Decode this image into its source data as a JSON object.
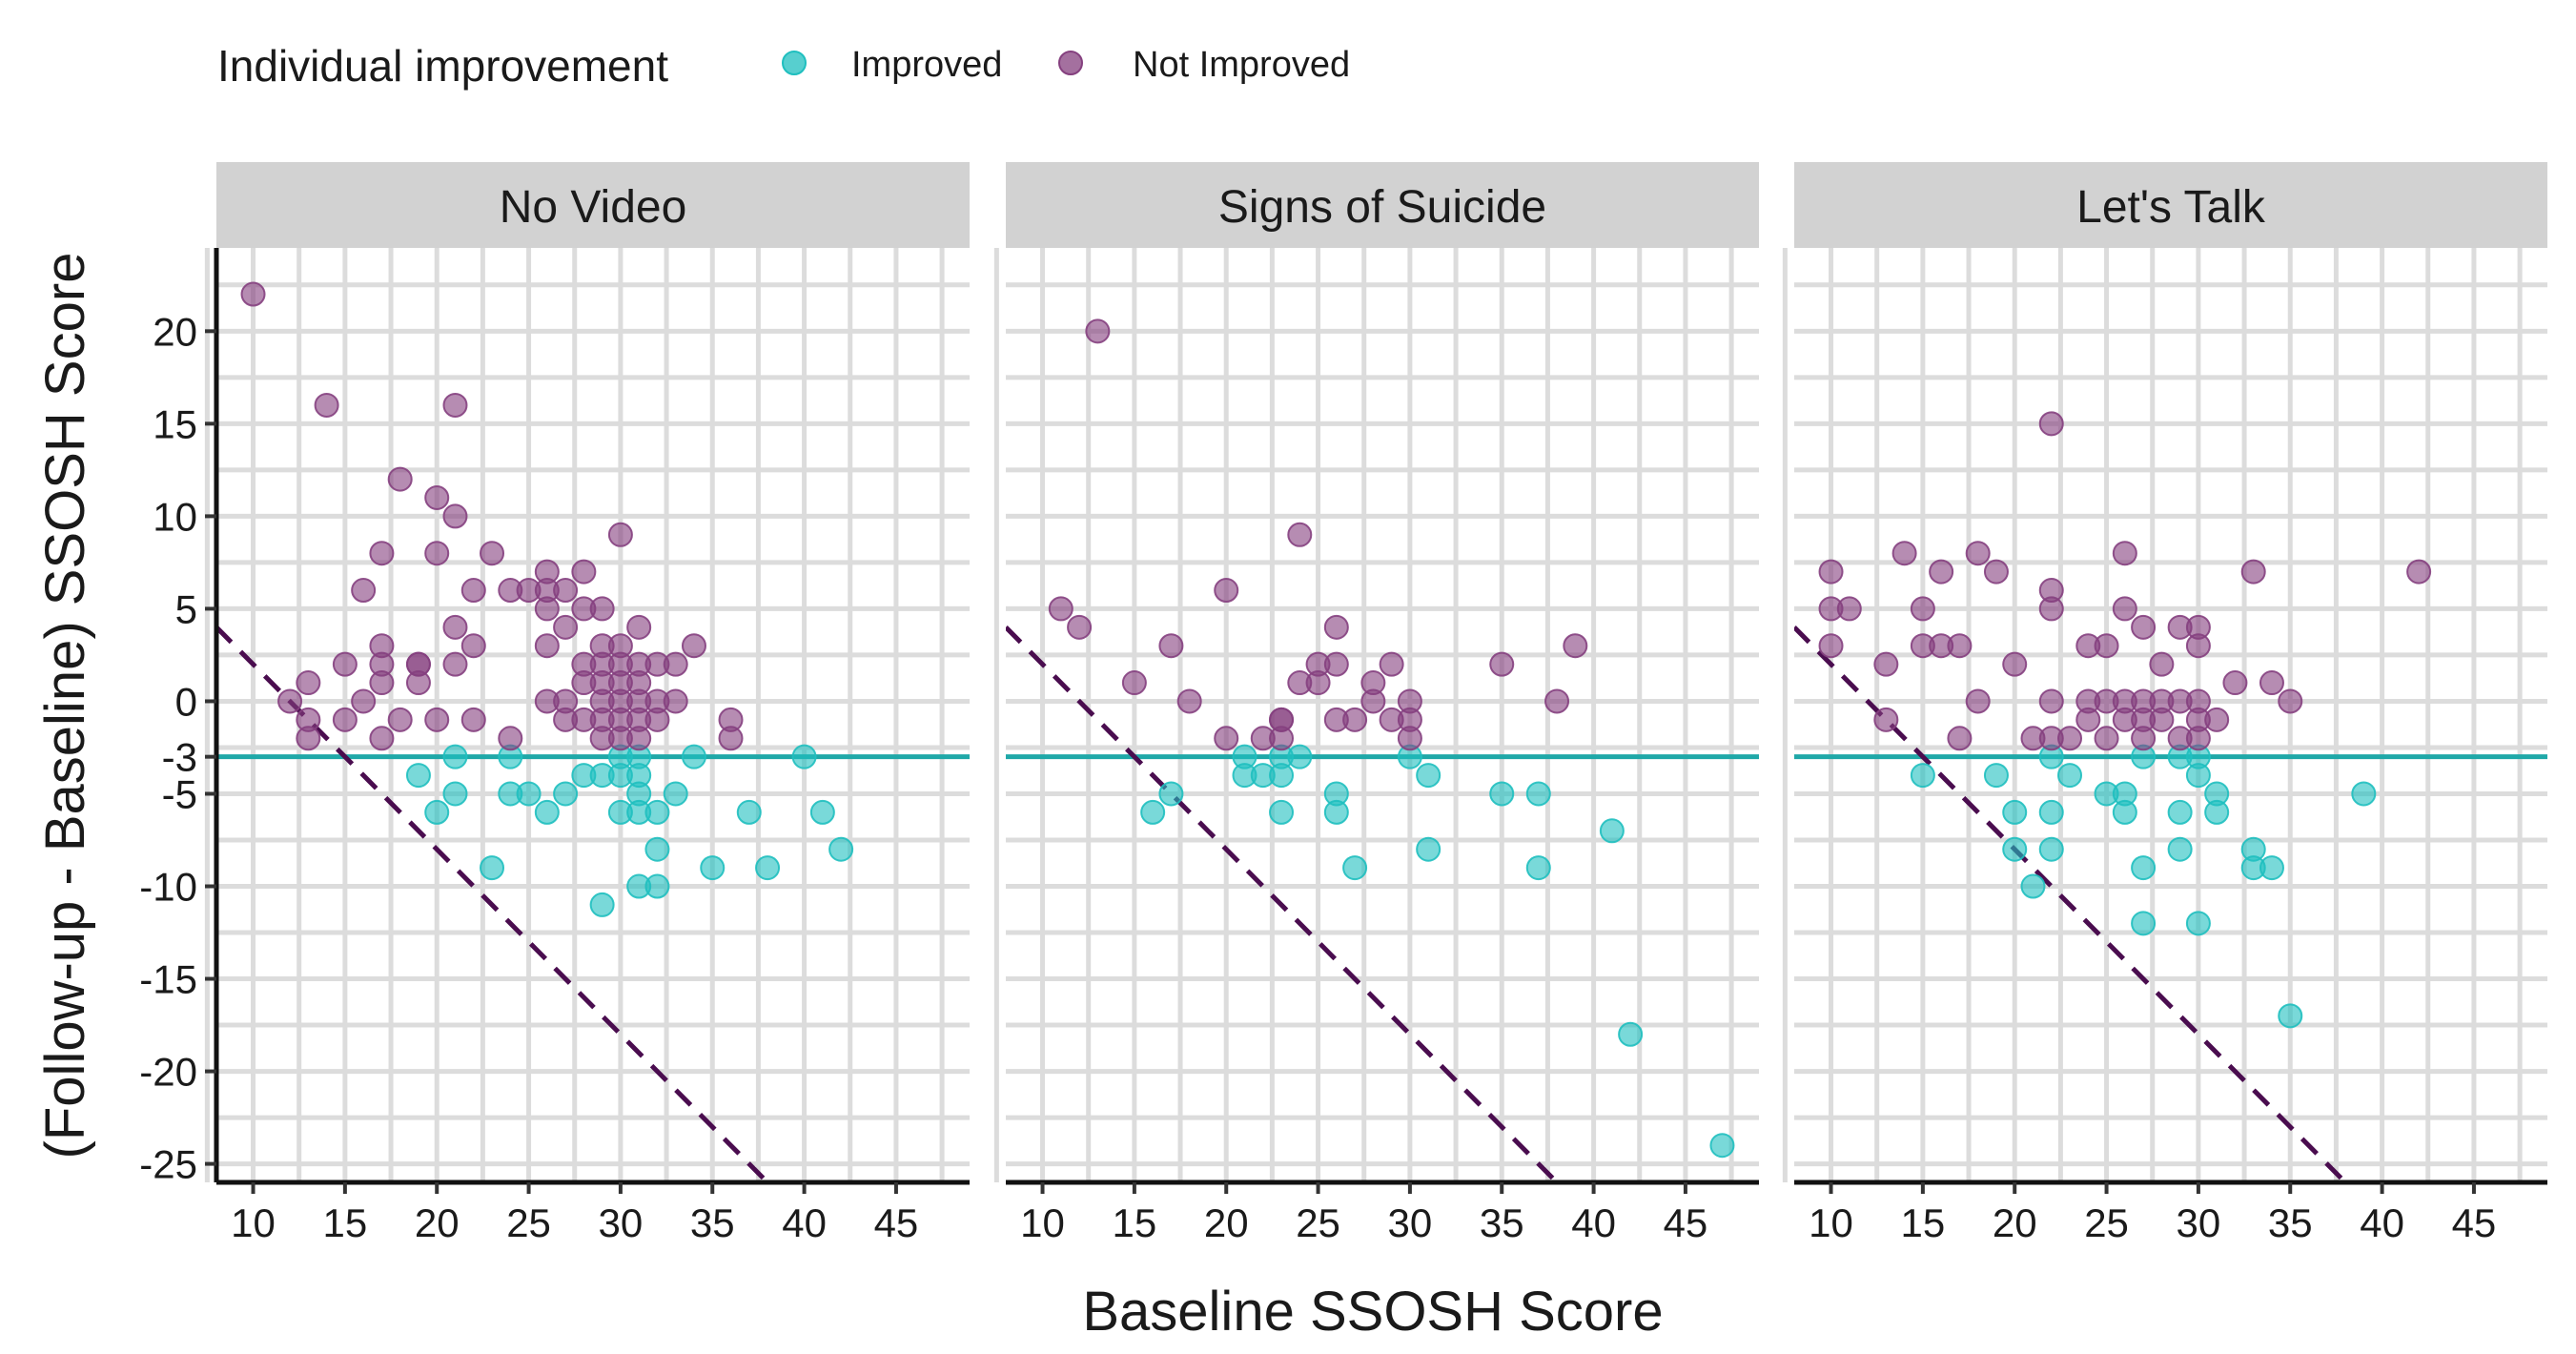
{
  "chart_data": {
    "type": "scatter",
    "legend": {
      "title": "Individual improvement",
      "position": "top-left",
      "entries": [
        {
          "name": "Improved",
          "color": "#1fbfbf"
        },
        {
          "name": "Not Improved",
          "color": "#85407f"
        }
      ]
    },
    "xlabel": "Baseline SSOSH Score",
    "ylabel": "(Follow-up - Baseline) SSOSH Score",
    "xlim": [
      8,
      49
    ],
    "ylim": [
      -26,
      24.5
    ],
    "x_ticks": [
      10,
      15,
      20,
      25,
      30,
      35,
      40,
      45
    ],
    "y_ticks": [
      -25,
      -20,
      -15,
      -10,
      -5,
      -3,
      0,
      5,
      10,
      15,
      20
    ],
    "grid": true,
    "reference_lines": [
      {
        "type": "horizontal",
        "y": -3,
        "color": "#1fa8a8",
        "style": "solid"
      },
      {
        "type": "diagonal",
        "equation": "y = 12 - x",
        "color": "#4a0d4f",
        "style": "dashed"
      }
    ],
    "panels": [
      {
        "title": "No Video",
        "series": [
          {
            "name": "Improved",
            "points": [
              [
                19,
                -4
              ],
              [
                20,
                -6
              ],
              [
                21,
                -3
              ],
              [
                21,
                -5
              ],
              [
                23,
                -9
              ],
              [
                24,
                -3
              ],
              [
                24,
                -5
              ],
              [
                25,
                -5
              ],
              [
                26,
                -6
              ],
              [
                27,
                -5
              ],
              [
                28,
                -4
              ],
              [
                29,
                -4
              ],
              [
                29,
                -11
              ],
              [
                30,
                -3
              ],
              [
                30,
                -4
              ],
              [
                30,
                -6
              ],
              [
                31,
                -3
              ],
              [
                31,
                -4
              ],
              [
                31,
                -5
              ],
              [
                31,
                -6
              ],
              [
                31,
                -10
              ],
              [
                32,
                -6
              ],
              [
                32,
                -8
              ],
              [
                32,
                -10
              ],
              [
                33,
                -5
              ],
              [
                34,
                -3
              ],
              [
                35,
                -9
              ],
              [
                37,
                -6
              ],
              [
                38,
                -9
              ],
              [
                40,
                -3
              ],
              [
                41,
                -6
              ],
              [
                42,
                -8
              ]
            ]
          },
          {
            "name": "Not Improved",
            "points": [
              [
                10,
                22
              ],
              [
                12,
                0
              ],
              [
                13,
                -1
              ],
              [
                13,
                -2
              ],
              [
                13,
                1
              ],
              [
                14,
                16
              ],
              [
                15,
                2
              ],
              [
                15,
                -1
              ],
              [
                16,
                6
              ],
              [
                16,
                0
              ],
              [
                17,
                8
              ],
              [
                17,
                3
              ],
              [
                17,
                1
              ],
              [
                17,
                -2
              ],
              [
                17,
                2
              ],
              [
                18,
                12
              ],
              [
                18,
                -1
              ],
              [
                19,
                2
              ],
              [
                19,
                1
              ],
              [
                19,
                2
              ],
              [
                20,
                11
              ],
              [
                20,
                8
              ],
              [
                20,
                -1
              ],
              [
                21,
                16
              ],
              [
                21,
                10
              ],
              [
                21,
                4
              ],
              [
                21,
                2
              ],
              [
                22,
                6
              ],
              [
                22,
                3
              ],
              [
                22,
                -1
              ],
              [
                23,
                8
              ],
              [
                24,
                6
              ],
              [
                24,
                -2
              ],
              [
                25,
                6
              ],
              [
                26,
                7
              ],
              [
                26,
                6
              ],
              [
                26,
                5
              ],
              [
                26,
                3
              ],
              [
                26,
                0
              ],
              [
                27,
                6
              ],
              [
                27,
                4
              ],
              [
                27,
                0
              ],
              [
                27,
                -1
              ],
              [
                28,
                7
              ],
              [
                28,
                5
              ],
              [
                28,
                2
              ],
              [
                28,
                1
              ],
              [
                28,
                -1
              ],
              [
                29,
                3
              ],
              [
                29,
                2
              ],
              [
                29,
                1
              ],
              [
                29,
                0
              ],
              [
                29,
                -1
              ],
              [
                29,
                -2
              ],
              [
                29,
                5
              ],
              [
                30,
                9
              ],
              [
                30,
                3
              ],
              [
                30,
                2
              ],
              [
                30,
                1
              ],
              [
                30,
                0
              ],
              [
                30,
                -1
              ],
              [
                30,
                -2
              ],
              [
                31,
                4
              ],
              [
                31,
                2
              ],
              [
                31,
                1
              ],
              [
                31,
                0
              ],
              [
                31,
                -1
              ],
              [
                31,
                -2
              ],
              [
                32,
                2
              ],
              [
                32,
                0
              ],
              [
                32,
                -1
              ],
              [
                33,
                2
              ],
              [
                33,
                0
              ],
              [
                34,
                3
              ],
              [
                36,
                -1
              ],
              [
                36,
                -2
              ]
            ]
          }
        ]
      },
      {
        "title": "Signs of Suicide",
        "series": [
          {
            "name": "Improved",
            "points": [
              [
                16,
                -6
              ],
              [
                17,
                -5
              ],
              [
                21,
                -3
              ],
              [
                21,
                -4
              ],
              [
                22,
                -4
              ],
              [
                23,
                -3
              ],
              [
                23,
                -4
              ],
              [
                23,
                -6
              ],
              [
                24,
                -3
              ],
              [
                26,
                -5
              ],
              [
                26,
                -6
              ],
              [
                27,
                -9
              ],
              [
                30,
                -3
              ],
              [
                31,
                -4
              ],
              [
                31,
                -8
              ],
              [
                35,
                -5
              ],
              [
                37,
                -5
              ],
              [
                37,
                -9
              ],
              [
                41,
                -7
              ],
              [
                42,
                -18
              ],
              [
                47,
                -24
              ]
            ]
          },
          {
            "name": "Not Improved",
            "points": [
              [
                11,
                5
              ],
              [
                12,
                4
              ],
              [
                13,
                20
              ],
              [
                15,
                1
              ],
              [
                17,
                3
              ],
              [
                18,
                0
              ],
              [
                20,
                6
              ],
              [
                20,
                -2
              ],
              [
                22,
                -2
              ],
              [
                23,
                -1
              ],
              [
                23,
                -1
              ],
              [
                23,
                -2
              ],
              [
                24,
                9
              ],
              [
                24,
                1
              ],
              [
                25,
                2
              ],
              [
                25,
                1
              ],
              [
                26,
                4
              ],
              [
                26,
                2
              ],
              [
                26,
                -1
              ],
              [
                27,
                -1
              ],
              [
                28,
                1
              ],
              [
                28,
                0
              ],
              [
                29,
                2
              ],
              [
                29,
                -1
              ],
              [
                30,
                0
              ],
              [
                30,
                -1
              ],
              [
                30,
                -2
              ],
              [
                35,
                2
              ],
              [
                38,
                0
              ],
              [
                39,
                3
              ]
            ]
          }
        ]
      },
      {
        "title": "Let's Talk",
        "series": [
          {
            "name": "Improved",
            "points": [
              [
                15,
                -4
              ],
              [
                19,
                -4
              ],
              [
                20,
                -6
              ],
              [
                20,
                -8
              ],
              [
                21,
                -10
              ],
              [
                22,
                -3
              ],
              [
                22,
                -6
              ],
              [
                22,
                -8
              ],
              [
                23,
                -4
              ],
              [
                25,
                -5
              ],
              [
                26,
                -5
              ],
              [
                26,
                -6
              ],
              [
                27,
                -3
              ],
              [
                27,
                -9
              ],
              [
                27,
                -12
              ],
              [
                29,
                -3
              ],
              [
                29,
                -6
              ],
              [
                29,
                -8
              ],
              [
                30,
                -3
              ],
              [
                30,
                -4
              ],
              [
                30,
                -12
              ],
              [
                31,
                -5
              ],
              [
                31,
                -6
              ],
              [
                33,
                -8
              ],
              [
                33,
                -9
              ],
              [
                34,
                -9
              ],
              [
                35,
                -17
              ],
              [
                39,
                -5
              ]
            ]
          },
          {
            "name": "Not Improved",
            "points": [
              [
                10,
                7
              ],
              [
                10,
                5
              ],
              [
                10,
                3
              ],
              [
                11,
                5
              ],
              [
                13,
                2
              ],
              [
                13,
                -1
              ],
              [
                14,
                8
              ],
              [
                15,
                5
              ],
              [
                15,
                3
              ],
              [
                16,
                7
              ],
              [
                16,
                3
              ],
              [
                17,
                3
              ],
              [
                17,
                -2
              ],
              [
                18,
                8
              ],
              [
                18,
                0
              ],
              [
                19,
                7
              ],
              [
                20,
                2
              ],
              [
                21,
                -2
              ],
              [
                22,
                15
              ],
              [
                22,
                6
              ],
              [
                22,
                5
              ],
              [
                22,
                0
              ],
              [
                22,
                -2
              ],
              [
                23,
                -2
              ],
              [
                24,
                3
              ],
              [
                24,
                0
              ],
              [
                24,
                -1
              ],
              [
                25,
                3
              ],
              [
                25,
                0
              ],
              [
                25,
                -2
              ],
              [
                26,
                8
              ],
              [
                26,
                5
              ],
              [
                26,
                0
              ],
              [
                26,
                -1
              ],
              [
                27,
                4
              ],
              [
                27,
                0
              ],
              [
                27,
                -1
              ],
              [
                27,
                -2
              ],
              [
                28,
                2
              ],
              [
                28,
                0
              ],
              [
                28,
                -1
              ],
              [
                29,
                4
              ],
              [
                29,
                0
              ],
              [
                29,
                -2
              ],
              [
                30,
                4
              ],
              [
                30,
                3
              ],
              [
                30,
                0
              ],
              [
                30,
                -1
              ],
              [
                30,
                -2
              ],
              [
                31,
                -1
              ],
              [
                32,
                1
              ],
              [
                33,
                7
              ],
              [
                34,
                1
              ],
              [
                35,
                0
              ],
              [
                42,
                7
              ]
            ]
          }
        ]
      }
    ]
  }
}
